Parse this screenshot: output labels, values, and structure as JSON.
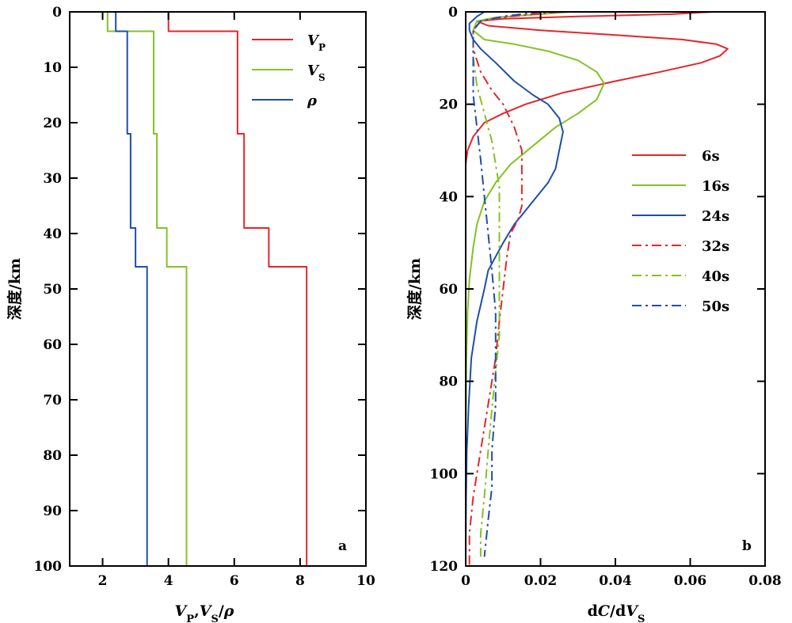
{
  "chart_data": [
    {
      "panel": "a",
      "type": "line",
      "xlabel_parts": [
        "V",
        "P",
        ",",
        "V",
        "S",
        "/",
        "ρ"
      ],
      "ylabel": "深度/km",
      "xlim": [
        1,
        10
      ],
      "ylim": [
        100,
        0
      ],
      "xticks": [
        "2",
        "4",
        "6",
        "8",
        "10"
      ],
      "yticks": [
        "0",
        "10",
        "20",
        "30",
        "40",
        "50",
        "60",
        "70",
        "80",
        "90",
        "100"
      ],
      "legend_position": "top-right",
      "series": [
        {
          "name": "V",
          "sub": "P",
          "color": "#e3262b",
          "layers": [
            [
              0,
              3.5,
              4.0
            ],
            [
              3.5,
              22,
              6.1
            ],
            [
              22,
              39,
              6.3
            ],
            [
              39,
              46,
              7.05
            ],
            [
              46,
              100,
              8.2
            ]
          ]
        },
        {
          "name": "V",
          "sub": "S",
          "color": "#84c225",
          "layers": [
            [
              0,
              3.5,
              2.15
            ],
            [
              3.5,
              22,
              3.55
            ],
            [
              22,
              39,
              3.65
            ],
            [
              39,
              46,
              3.95
            ],
            [
              46,
              100,
              4.55
            ]
          ]
        },
        {
          "name": "ρ",
          "sub": "",
          "color": "#1f4ea8",
          "layers": [
            [
              0,
              3.5,
              2.4
            ],
            [
              3.5,
              22,
              2.75
            ],
            [
              22,
              39,
              2.85
            ],
            [
              39,
              46,
              3.0
            ],
            [
              46,
              100,
              3.35
            ]
          ]
        }
      ]
    },
    {
      "panel": "b",
      "type": "line",
      "xlabel_parts": [
        "d",
        "C",
        "/d",
        "V",
        "S"
      ],
      "ylabel": "深度/km",
      "xlim": [
        0,
        0.08
      ],
      "ylim": [
        120,
        0
      ],
      "xticks": [
        "0",
        "0.02",
        "0.04",
        "0.06",
        "0.08"
      ],
      "yticks": [
        "0",
        "20",
        "40",
        "60",
        "80",
        "100",
        "120"
      ],
      "legend_position": "center-right",
      "series": [
        {
          "name": "6s",
          "color": "#e3262b",
          "dash": "solid",
          "points": [
            [
              0.066,
              0
            ],
            [
              0.055,
              0.5
            ],
            [
              0.03,
              1
            ],
            [
              0.01,
              1.5
            ],
            [
              0.003,
              2
            ],
            [
              0.006,
              3
            ],
            [
              0.02,
              4
            ],
            [
              0.04,
              5
            ],
            [
              0.058,
              6
            ],
            [
              0.067,
              7
            ],
            [
              0.07,
              8
            ],
            [
              0.068,
              9.5
            ],
            [
              0.063,
              11
            ],
            [
              0.052,
              13
            ],
            [
              0.04,
              15
            ],
            [
              0.026,
              17.5
            ],
            [
              0.016,
              20
            ],
            [
              0.01,
              22
            ],
            [
              0.005,
              24
            ],
            [
              0.002,
              27
            ],
            [
              0.0005,
              30
            ],
            [
              0,
              33
            ]
          ]
        },
        {
          "name": "16s",
          "color": "#84c225",
          "dash": "solid",
          "points": [
            [
              0.028,
              0
            ],
            [
              0.02,
              0.5
            ],
            [
              0.008,
              1.2
            ],
            [
              0.003,
              2
            ],
            [
              0.002,
              4
            ],
            [
              0.005,
              6
            ],
            [
              0.013,
              7
            ],
            [
              0.022,
              8.5
            ],
            [
              0.03,
              10.5
            ],
            [
              0.035,
              13
            ],
            [
              0.037,
              15.5
            ],
            [
              0.035,
              19
            ],
            [
              0.03,
              22
            ],
            [
              0.024,
              25
            ],
            [
              0.018,
              29
            ],
            [
              0.012,
              33
            ],
            [
              0.008,
              37
            ],
            [
              0.005,
              41
            ],
            [
              0.003,
              46
            ],
            [
              0.002,
              51
            ],
            [
              0.001,
              58
            ],
            [
              0.0005,
              65
            ],
            [
              0.0002,
              75
            ],
            [
              0.0001,
              85
            ],
            [
              0,
              91
            ]
          ]
        },
        {
          "name": "24s",
          "color": "#1f4ea8",
          "dash": "solid",
          "points": [
            [
              0.005,
              0
            ],
            [
              0.003,
              1
            ],
            [
              0.001,
              2.5
            ],
            [
              0.001,
              4
            ],
            [
              0.002,
              6
            ],
            [
              0.004,
              8
            ],
            [
              0.008,
              11
            ],
            [
              0.013,
              15
            ],
            [
              0.018,
              18
            ],
            [
              0.022,
              20
            ],
            [
              0.025,
              23
            ],
            [
              0.026,
              26
            ],
            [
              0.025,
              30
            ],
            [
              0.024,
              34
            ],
            [
              0.022,
              37
            ],
            [
              0.02,
              39
            ],
            [
              0.018,
              41
            ],
            [
              0.015,
              44
            ],
            [
              0.013,
              46
            ],
            [
              0.01,
              50
            ],
            [
              0.008,
              53
            ],
            [
              0.006,
              56
            ],
            [
              0.005,
              60
            ],
            [
              0.003,
              67
            ],
            [
              0.0015,
              75
            ],
            [
              0.0008,
              85
            ],
            [
              0.0003,
              95
            ],
            [
              0.0001,
              105
            ],
            [
              0,
              118
            ]
          ]
        },
        {
          "name": "32s",
          "color": "#e3262b",
          "dash": "dashdot",
          "points": [
            [
              0.025,
              0
            ],
            [
              0.012,
              1
            ],
            [
              0.004,
              2
            ],
            [
              0.002,
              4
            ],
            [
              0.002,
              8
            ],
            [
              0.004,
              13
            ],
            [
              0.007,
              17
            ],
            [
              0.01,
              20
            ],
            [
              0.013,
              25
            ],
            [
              0.015,
              30
            ],
            [
              0.015,
              36
            ],
            [
              0.015,
              42
            ],
            [
              0.014,
              45
            ],
            [
              0.012,
              48
            ],
            [
              0.011,
              53
            ],
            [
              0.01,
              60
            ],
            [
              0.009,
              67
            ],
            [
              0.008,
              75
            ],
            [
              0.006,
              85
            ],
            [
              0.004,
              95
            ],
            [
              0.002,
              105
            ],
            [
              0.001,
              113
            ],
            [
              0.001,
              120
            ]
          ]
        },
        {
          "name": "40s",
          "color": "#84c225",
          "dash": "dashdot",
          "points": [
            [
              0.02,
              0
            ],
            [
              0.01,
              1
            ],
            [
              0.004,
              2
            ],
            [
              0.002,
              4
            ],
            [
              0.002,
              10
            ],
            [
              0.003,
              16
            ],
            [
              0.005,
              22
            ],
            [
              0.007,
              28
            ],
            [
              0.008,
              33
            ],
            [
              0.009,
              38
            ],
            [
              0.009,
              43
            ],
            [
              0.009,
              48
            ],
            [
              0.009,
              55
            ],
            [
              0.009,
              62
            ],
            [
              0.009,
              70
            ],
            [
              0.008,
              78
            ],
            [
              0.007,
              86
            ],
            [
              0.006,
              95
            ],
            [
              0.005,
              105
            ],
            [
              0.004,
              113
            ],
            [
              0.004,
              118
            ]
          ]
        },
        {
          "name": "50s",
          "color": "#1f4ea8",
          "dash": "dashdot",
          "points": [
            [
              0.02,
              0
            ],
            [
              0.01,
              1
            ],
            [
              0.004,
              2
            ],
            [
              0.002,
              4
            ],
            [
              0.002,
              10
            ],
            [
              0.002,
              18
            ],
            [
              0.003,
              25
            ],
            [
              0.004,
              32
            ],
            [
              0.005,
              40
            ],
            [
              0.006,
              48
            ],
            [
              0.007,
              56
            ],
            [
              0.008,
              65
            ],
            [
              0.008,
              75
            ],
            [
              0.008,
              85
            ],
            [
              0.007,
              95
            ],
            [
              0.007,
              103
            ],
            [
              0.006,
              110
            ],
            [
              0.005,
              118
            ]
          ]
        }
      ]
    }
  ]
}
